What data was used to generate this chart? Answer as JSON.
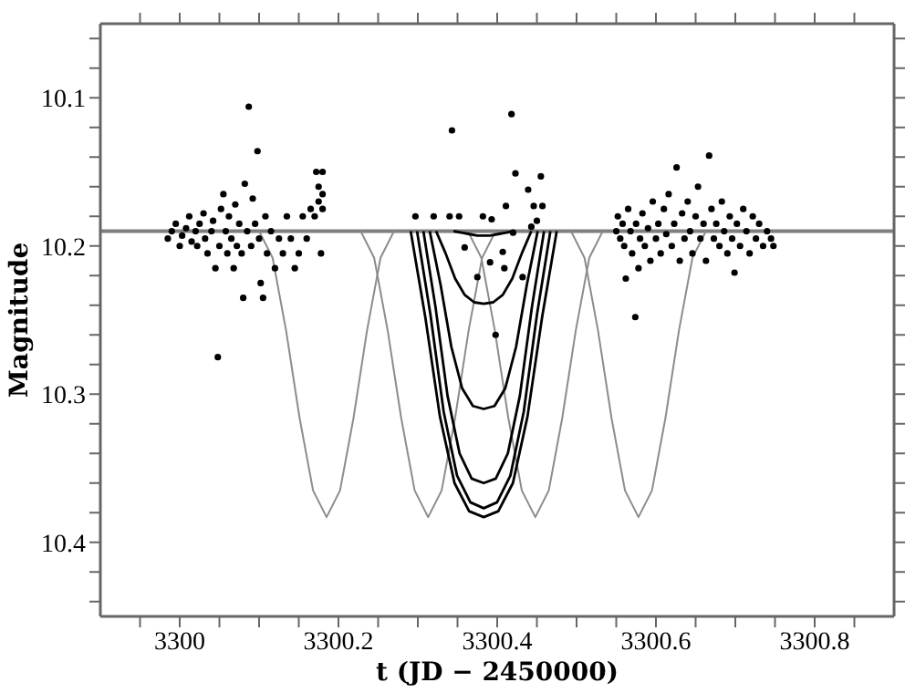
{
  "chart_data": {
    "type": "scatter",
    "xlabel": "t (JD − 2450000)",
    "ylabel": "Magnitude",
    "marker": "circle",
    "legend": false,
    "xlim": [
      3299.9,
      3300.9
    ],
    "ylim": [
      10.45,
      10.05
    ],
    "xticks": [
      {
        "value": 3299.95,
        "label": null
      },
      3300,
      {
        "value": 3300.05,
        "label": null
      },
      {
        "value": 3300.1,
        "label": null
      },
      {
        "value": 3300.15,
        "label": null
      },
      3300.2,
      {
        "value": 3300.25,
        "label": null
      },
      {
        "value": 3300.3,
        "label": null
      },
      {
        "value": 3300.35,
        "label": null
      },
      3300.4,
      {
        "value": 3300.45,
        "label": null
      },
      {
        "value": 3300.5,
        "label": null
      },
      {
        "value": 3300.55,
        "label": null
      },
      3300.6,
      {
        "value": 3300.65,
        "label": null
      },
      {
        "value": 3300.7,
        "label": null
      },
      {
        "value": 3300.75,
        "label": null
      },
      3300.8,
      {
        "value": 3300.85,
        "label": null
      }
    ],
    "yticks": [
      {
        "value": 10.06,
        "label": null
      },
      {
        "value": 10.08,
        "label": null
      },
      10.1,
      {
        "value": 10.12,
        "label": null
      },
      {
        "value": 10.14,
        "label": null
      },
      {
        "value": 10.16,
        "label": null
      },
      {
        "value": 10.18,
        "label": null
      },
      10.2,
      {
        "value": 10.22,
        "label": null
      },
      {
        "value": 10.24,
        "label": null
      },
      {
        "value": 10.26,
        "label": null
      },
      {
        "value": 10.28,
        "label": null
      },
      10.3,
      {
        "value": 10.32,
        "label": null
      },
      {
        "value": 10.34,
        "label": null
      },
      {
        "value": 10.36,
        "label": null
      },
      {
        "value": 10.38,
        "label": null
      },
      10.4,
      {
        "value": 10.42,
        "label": null
      },
      {
        "value": 10.44,
        "label": null
      }
    ],
    "ref_lines": [
      {
        "axis": "y",
        "value": 10.19,
        "label": null,
        "color": "#7f7f7f"
      }
    ],
    "series": [
      {
        "color": "#000000",
        "x": [
          3299.985,
          3299.99,
          3299.995,
          3300.0,
          3300.003,
          3300.008,
          3300.012,
          3300.015,
          3300.02,
          3300.022,
          3300.025,
          3300.03,
          3300.032,
          3300.035,
          3300.04,
          3300.042,
          3300.045,
          3300.048,
          3300.05,
          3300.052,
          3300.055,
          3300.058,
          3300.06,
          3300.062,
          3300.065,
          3300.068,
          3300.07,
          3300.072,
          3300.075,
          3300.078,
          3300.08,
          3300.082,
          3300.085,
          3300.087,
          3300.09,
          3300.092,
          3300.095,
          3300.098,
          3300.1,
          3300.102,
          3300.105,
          3300.108,
          3300.11,
          3300.115,
          3300.12,
          3300.125,
          3300.13,
          3300.135,
          3300.14,
          3300.145,
          3300.15,
          3300.155,
          3300.16,
          3300.165,
          3300.17,
          3300.172,
          3300.175,
          3300.175,
          3300.178,
          3300.18,
          3300.18,
          3300.18,
          3300.297,
          3300.32,
          3300.34,
          3300.343,
          3300.352,
          3300.359,
          3300.375,
          3300.382,
          3300.391,
          3300.393,
          3300.398,
          3300.407,
          3300.409,
          3300.411,
          3300.418,
          3300.42,
          3300.423,
          3300.432,
          3300.439,
          3300.443,
          3300.446,
          3300.45,
          3300.455,
          3300.457,
          3300.55,
          3300.552,
          3300.555,
          3300.558,
          3300.56,
          3300.562,
          3300.565,
          3300.568,
          3300.57,
          3300.574,
          3300.575,
          3300.578,
          3300.58,
          3300.583,
          3300.586,
          3300.59,
          3300.593,
          3300.596,
          3300.6,
          3300.603,
          3300.606,
          3300.61,
          3300.613,
          3300.616,
          3300.62,
          3300.623,
          3300.626,
          3300.63,
          3300.633,
          3300.636,
          3300.64,
          3300.643,
          3300.646,
          3300.65,
          3300.653,
          3300.656,
          3300.66,
          3300.663,
          3300.667,
          3300.67,
          3300.673,
          3300.676,
          3300.68,
          3300.683,
          3300.686,
          3300.69,
          3300.693,
          3300.696,
          3300.699,
          3300.702,
          3300.706,
          3300.71,
          3300.714,
          3300.718,
          3300.722,
          3300.726,
          3300.73,
          3300.735,
          3300.74,
          3300.745,
          3300.748
        ],
        "values": [
          10.195,
          10.19,
          10.185,
          10.2,
          10.193,
          10.188,
          10.18,
          10.197,
          10.19,
          10.2,
          10.185,
          10.178,
          10.195,
          10.205,
          10.19,
          10.183,
          10.215,
          10.275,
          10.2,
          10.175,
          10.165,
          10.19,
          10.205,
          10.18,
          10.195,
          10.215,
          10.172,
          10.2,
          10.185,
          10.205,
          10.235,
          10.158,
          10.19,
          10.106,
          10.2,
          10.168,
          10.185,
          10.136,
          10.195,
          10.225,
          10.235,
          10.18,
          10.205,
          10.19,
          10.215,
          10.195,
          10.205,
          10.18,
          10.195,
          10.215,
          10.205,
          10.18,
          10.195,
          10.175,
          10.18,
          10.15,
          10.16,
          10.17,
          10.205,
          10.15,
          10.175,
          10.165,
          10.18,
          10.18,
          10.18,
          10.122,
          10.18,
          10.201,
          10.221,
          10.18,
          10.211,
          10.182,
          10.26,
          10.204,
          10.215,
          10.173,
          10.111,
          10.191,
          10.151,
          10.221,
          10.162,
          10.187,
          10.173,
          10.183,
          10.153,
          10.173,
          10.19,
          10.18,
          10.195,
          10.185,
          10.2,
          10.222,
          10.175,
          10.19,
          10.205,
          10.248,
          10.185,
          10.215,
          10.195,
          10.178,
          10.2,
          10.188,
          10.21,
          10.17,
          10.195,
          10.185,
          10.205,
          10.175,
          10.192,
          10.165,
          10.2,
          10.185,
          10.147,
          10.21,
          10.178,
          10.195,
          10.17,
          10.19,
          10.205,
          10.18,
          10.16,
          10.195,
          10.185,
          10.21,
          10.139,
          10.175,
          10.195,
          10.185,
          10.2,
          10.17,
          10.19,
          10.205,
          10.18,
          10.195,
          10.218,
          10.185,
          10.2,
          10.175,
          10.19,
          10.205,
          10.18,
          10.195,
          10.185,
          10.2,
          10.19,
          10.195,
          10.2
        ]
      },
      {
        "type": "line",
        "marker": "none",
        "color": "#8c8c8c",
        "x": [
          3300.1,
          3300.117,
          3300.134,
          3300.151,
          3300.168,
          3300.185,
          3300.202,
          3300.219,
          3300.236,
          3300.253,
          3300.27
        ],
        "values": [
          10.19,
          10.208,
          10.257,
          10.316,
          10.365,
          10.383,
          10.365,
          10.316,
          10.257,
          10.208,
          10.19
        ]
      },
      {
        "type": "line",
        "marker": "none",
        "color": "#8c8c8c",
        "x": [
          3300.228,
          3300.245,
          3300.262,
          3300.279,
          3300.296,
          3300.313,
          3300.33,
          3300.347,
          3300.364,
          3300.381,
          3300.398
        ],
        "values": [
          10.19,
          10.208,
          10.257,
          10.316,
          10.365,
          10.383,
          10.365,
          10.316,
          10.257,
          10.208,
          10.19
        ]
      },
      {
        "type": "line",
        "marker": "none",
        "color": "#8c8c8c",
        "x": [
          3300.363,
          3300.38,
          3300.397,
          3300.414,
          3300.431,
          3300.448,
          3300.465,
          3300.482,
          3300.499,
          3300.516,
          3300.533
        ],
        "values": [
          10.19,
          10.208,
          10.257,
          10.316,
          10.365,
          10.383,
          10.365,
          10.316,
          10.257,
          10.208,
          10.19
        ]
      },
      {
        "type": "line",
        "marker": "none",
        "color": "#8c8c8c",
        "x": [
          3300.493,
          3300.51,
          3300.527,
          3300.544,
          3300.561,
          3300.578,
          3300.595,
          3300.612,
          3300.629,
          3300.646,
          3300.663
        ],
        "values": [
          10.19,
          10.208,
          10.257,
          10.316,
          10.365,
          10.383,
          10.365,
          10.316,
          10.257,
          10.208,
          10.19
        ]
      },
      {
        "type": "line",
        "marker": "none",
        "color": "#000000",
        "x": [
          3300.345,
          3300.355,
          3300.365,
          3300.375,
          3300.383,
          3300.391,
          3300.401,
          3300.411,
          3300.421
        ],
        "values": [
          10.19,
          10.191,
          10.192,
          10.193,
          10.193,
          10.193,
          10.192,
          10.191,
          10.19
        ]
      },
      {
        "type": "line",
        "marker": "none",
        "color": "#000000",
        "x": [
          3300.323,
          3300.335,
          3300.347,
          3300.359,
          3300.371,
          3300.383,
          3300.395,
          3300.407,
          3300.419,
          3300.431,
          3300.443
        ],
        "values": [
          10.19,
          10.205,
          10.222,
          10.233,
          10.238,
          10.239,
          10.238,
          10.233,
          10.222,
          10.205,
          10.19
        ]
      },
      {
        "type": "line",
        "marker": "none",
        "color": "#000000",
        "x": [
          3300.315,
          3300.3286,
          3300.3422,
          3300.3558,
          3300.3694,
          3300.383,
          3300.3966,
          3300.4102,
          3300.4238,
          3300.4374,
          3300.451
        ],
        "values": [
          10.19,
          10.226,
          10.268,
          10.296,
          10.308,
          10.31,
          10.308,
          10.296,
          10.268,
          10.226,
          10.19
        ]
      },
      {
        "type": "line",
        "marker": "none",
        "color": "#000000",
        "x": [
          3300.307,
          3300.3222,
          3300.3374,
          3300.3526,
          3300.3678,
          3300.383,
          3300.3982,
          3300.4134,
          3300.4286,
          3300.4438,
          3300.459
        ],
        "values": [
          10.19,
          10.241,
          10.301,
          10.34,
          10.357,
          10.36,
          10.357,
          10.34,
          10.301,
          10.241,
          10.19
        ]
      },
      {
        "type": "line",
        "marker": "none",
        "color": "#000000",
        "x": [
          3300.299,
          3300.3158,
          3300.3326,
          3300.3494,
          3300.3662,
          3300.383,
          3300.3998,
          3300.4166,
          3300.4334,
          3300.4502,
          3300.467
        ],
        "values": [
          10.19,
          10.246,
          10.312,
          10.355,
          10.373,
          10.377,
          10.373,
          10.355,
          10.312,
          10.246,
          10.19
        ]
      },
      {
        "type": "line",
        "marker": "none",
        "color": "#000000",
        "x": [
          3300.291,
          3300.3094,
          3300.3278,
          3300.3462,
          3300.3646,
          3300.383,
          3300.4014,
          3300.4198,
          3300.4382,
          3300.4566,
          3300.475
        ],
        "values": [
          10.19,
          10.248,
          10.315,
          10.36,
          10.379,
          10.383,
          10.379,
          10.36,
          10.315,
          10.248,
          10.19
        ]
      }
    ]
  }
}
